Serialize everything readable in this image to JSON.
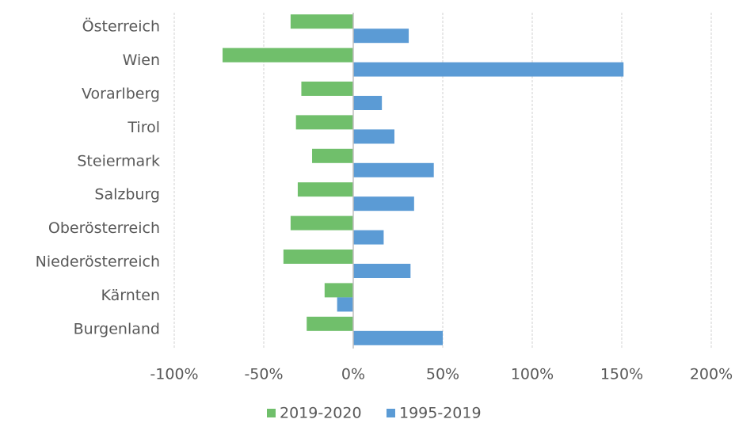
{
  "chart_data": {
    "type": "barh",
    "categories": [
      "Österreich",
      "Wien",
      "Vorarlberg",
      "Tirol",
      "Steiermark",
      "Salzburg",
      "Oberösterreich",
      "Niederösterreich",
      "Kärnten",
      "Burgenland"
    ],
    "series": [
      {
        "name": "2019-2020",
        "color": "#70bf6b",
        "values": [
          -35,
          -73,
          -29,
          -32,
          -23,
          -31,
          -35,
          -39,
          -16,
          -26
        ]
      },
      {
        "name": "1995-2019",
        "color": "#5b9bd5",
        "values": [
          31,
          151,
          16,
          23,
          45,
          34,
          17,
          32,
          -9,
          50
        ]
      }
    ],
    "xlim": [
      -100,
      200
    ],
    "xticks": [
      {
        "value": -100,
        "label": "-100%"
      },
      {
        "value": -50,
        "label": "-50%"
      },
      {
        "value": 0,
        "label": "0%"
      },
      {
        "value": 50,
        "label": "50%"
      },
      {
        "value": 100,
        "label": "100%"
      },
      {
        "value": 150,
        "label": "150%"
      },
      {
        "value": 200,
        "label": "200%"
      }
    ],
    "grid": true,
    "legend": "bottom"
  }
}
